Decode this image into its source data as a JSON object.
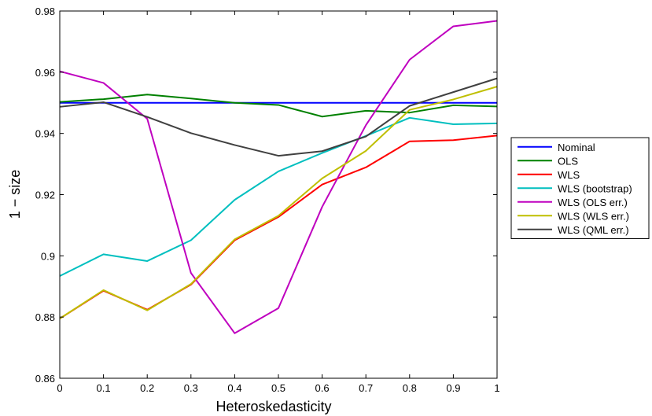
{
  "chart_data": {
    "type": "line",
    "xlabel": "Heteroskedasticity",
    "ylabel": "1 − size",
    "xlim": [
      0,
      1
    ],
    "ylim": [
      0.86,
      0.98
    ],
    "x": [
      0,
      0.1,
      0.2,
      0.3,
      0.4,
      0.5,
      0.6,
      0.7,
      0.8,
      0.9,
      1.0
    ],
    "xticks": [
      "0",
      "0.1",
      "0.2",
      "0.3",
      "0.4",
      "0.5",
      "0.6",
      "0.7",
      "0.8",
      "0.9",
      "1"
    ],
    "yticks": [
      "0.86",
      "0.88",
      "0.9",
      "0.92",
      "0.94",
      "0.96",
      "0.98"
    ],
    "yticks_values": [
      0.86,
      0.88,
      0.9,
      0.92,
      0.94,
      0.96,
      0.98
    ],
    "grid": false,
    "legend_position": "outside-right",
    "series": [
      {
        "name": "Nominal",
        "color": "#0000ff",
        "values": [
          0.95,
          0.95,
          0.95,
          0.95,
          0.95,
          0.95,
          0.95,
          0.95,
          0.95,
          0.95,
          0.95
        ]
      },
      {
        "name": "OLS",
        "color": "#008000",
        "values": [
          0.9503,
          0.9512,
          0.9527,
          0.9514,
          0.95,
          0.9493,
          0.9455,
          0.9474,
          0.9468,
          0.9492,
          0.9488
        ]
      },
      {
        "name": "WLS",
        "color": "#ff0000",
        "values": [
          0.8795,
          0.8886,
          0.8824,
          0.8906,
          0.9051,
          0.9127,
          0.9233,
          0.9289,
          0.9374,
          0.9378,
          0.9393
        ]
      },
      {
        "name": "WLS (bootstrap)",
        "color": "#00bfbf",
        "values": [
          0.8934,
          0.9005,
          0.8983,
          0.9051,
          0.9183,
          0.9276,
          0.9336,
          0.9392,
          0.9451,
          0.943,
          0.9433
        ]
      },
      {
        "name": "WLS (OLS err.)",
        "color": "#bf00bf",
        "values": [
          0.9603,
          0.9565,
          0.9448,
          0.8944,
          0.8747,
          0.8829,
          0.916,
          0.9427,
          0.9641,
          0.975,
          0.9768
        ]
      },
      {
        "name": "WLS (WLS err.)",
        "color": "#bfbf00",
        "values": [
          0.8795,
          0.8888,
          0.8822,
          0.8908,
          0.9054,
          0.9131,
          0.9253,
          0.9343,
          0.9477,
          0.9511,
          0.9553
        ]
      },
      {
        "name": "WLS (QML err.)",
        "color": "#404040",
        "values": [
          0.9487,
          0.9502,
          0.9454,
          0.9401,
          0.9362,
          0.9327,
          0.9342,
          0.939,
          0.949,
          0.9535,
          0.958
        ]
      }
    ]
  }
}
